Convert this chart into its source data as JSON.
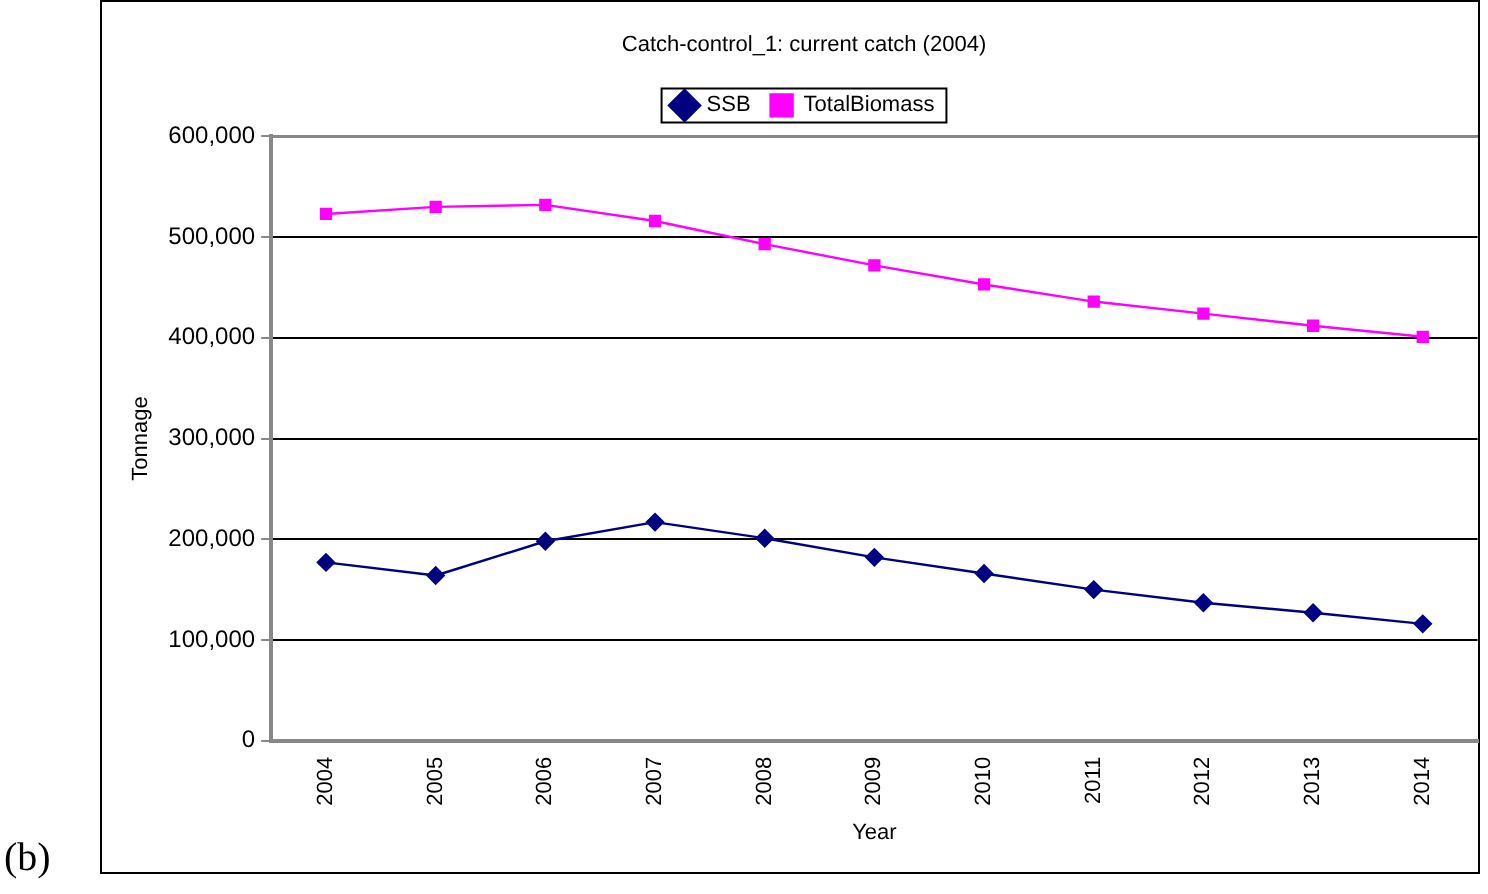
{
  "chart_data": {
    "type": "line",
    "title": "Catch-control_1: current catch (2004)",
    "xlabel": "Year",
    "ylabel": "Tonnage",
    "categories": [
      "2004",
      "2005",
      "2006",
      "2007",
      "2008",
      "2009",
      "2010",
      "2011",
      "2012",
      "2013",
      "2014"
    ],
    "series": [
      {
        "name": "SSB",
        "color": "#000080",
        "marker": "diamond",
        "values": [
          177000,
          164000,
          198000,
          217000,
          201000,
          182000,
          166000,
          150000,
          137000,
          127000,
          116000
        ]
      },
      {
        "name": "TotalBiomass",
        "color": "#ff00ff",
        "marker": "square",
        "values": [
          523000,
          530000,
          532000,
          516000,
          493000,
          472000,
          453000,
          436000,
          424000,
          412000,
          401000
        ]
      }
    ],
    "ylim": [
      0,
      600000
    ],
    "yticks": [
      0,
      {
        "value": 100000,
        "label": "100,000"
      },
      {
        "value": 200000,
        "label": "200,000"
      },
      {
        "value": 300000,
        "label": "300,000"
      },
      {
        "value": 400000,
        "label": "400,000"
      },
      {
        "value": 500000,
        "label": "500,000"
      },
      {
        "value": 600000,
        "label": "600,000"
      }
    ],
    "grid": "y",
    "legend": "top",
    "annotations": [
      "(b)"
    ]
  }
}
